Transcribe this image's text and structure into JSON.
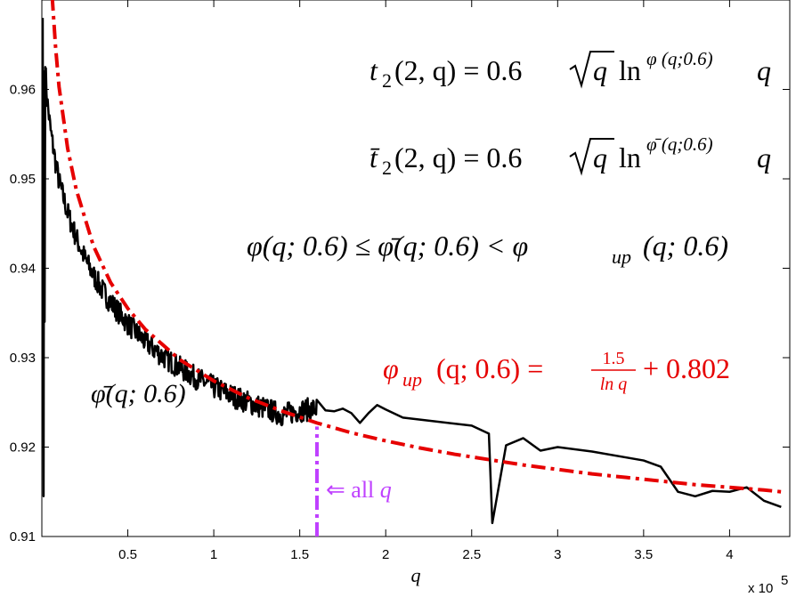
{
  "chart_data": {
    "type": "line",
    "title": "",
    "xlabel": "q",
    "ylabel": "",
    "x_exponent_label": "x 10",
    "x_exponent_power": "5",
    "xlim": [
      0,
      4.35
    ],
    "ylim": [
      0.91,
      0.97
    ],
    "grid": false,
    "x_ticks": [
      0.5,
      1,
      1.5,
      2,
      2.5,
      3,
      3.5,
      4
    ],
    "x_tick_labels": [
      "0.5",
      "1",
      "1.5",
      "2",
      "2.5",
      "3",
      "3.5",
      "4"
    ],
    "y_ticks": [
      0.91,
      0.92,
      0.93,
      0.94,
      0.95,
      0.96
    ],
    "y_tick_labels": [
      "0.91",
      "0.92",
      "0.93",
      "0.94",
      "0.95",
      "0.96"
    ],
    "colors": {
      "phi_bar": "#000000",
      "phi_up": "#e60000",
      "marker": "#bf40ff"
    },
    "series": [
      {
        "name": "φ̄(q; 0.6)",
        "color": "#000000",
        "x": [
          0.005,
          0.012,
          0.02,
          0.03,
          0.05,
          0.08,
          0.1,
          0.15,
          0.2,
          0.25,
          0.3,
          0.35,
          0.4,
          0.5,
          0.6,
          0.7,
          0.8,
          0.9,
          1.0,
          1.1,
          1.2,
          1.3,
          1.4,
          1.5,
          1.6,
          1.65,
          1.7,
          1.75,
          1.8,
          1.85,
          1.9,
          1.95,
          2.0,
          2.1,
          2.5,
          2.6,
          2.62,
          2.7,
          2.8,
          2.9,
          3.0,
          3.2,
          3.5,
          3.6,
          3.7,
          3.8,
          3.9,
          4.0,
          4.1,
          4.2,
          4.3
        ],
        "values": [
          0.968,
          0.966,
          0.9625,
          0.959,
          0.9555,
          0.9518,
          0.9497,
          0.9462,
          0.9434,
          0.9411,
          0.9392,
          0.9376,
          0.9362,
          0.9338,
          0.9318,
          0.9302,
          0.9289,
          0.9277,
          0.9267,
          0.9258,
          0.925,
          0.9243,
          0.9236,
          0.9241,
          0.9243,
          0.9241,
          0.924,
          0.9243,
          0.9238,
          0.9227,
          0.9238,
          0.9247,
          0.9242,
          0.9233,
          0.9224,
          0.9215,
          0.9115,
          0.9202,
          0.921,
          0.9196,
          0.92,
          0.9195,
          0.9185,
          0.9178,
          0.915,
          0.9145,
          0.9151,
          0.915,
          0.9155,
          0.914,
          0.9133
        ]
      },
      {
        "name": "φ_up(q; 0.6)",
        "color": "#e60000",
        "formula": "1.5/ln q + 0.802",
        "x": [
          0.06,
          0.08,
          0.1,
          0.15,
          0.2,
          0.3,
          0.4,
          0.5,
          0.6,
          0.8,
          1.0,
          1.2,
          1.4,
          1.6,
          1.8,
          2.0,
          2.2,
          2.4,
          2.6,
          2.8,
          3.0,
          3.2,
          3.4,
          3.6,
          3.8,
          4.0,
          4.2,
          4.3
        ],
        "values": [
          0.9704,
          0.9647,
          0.9603,
          0.9534,
          0.9488,
          0.9425,
          0.9384,
          0.9355,
          0.9332,
          0.9298,
          0.9274,
          0.9255,
          0.924,
          0.9227,
          0.9216,
          0.9207,
          0.9199,
          0.9192,
          0.9186,
          0.918,
          0.9175,
          0.917,
          0.9166,
          0.9162,
          0.9158,
          0.9155,
          0.9152,
          0.915
        ]
      }
    ],
    "marker_line": {
      "x": 1.6,
      "y_from": 0.91,
      "y_to": 0.9223
    },
    "annotations": {
      "eq1": {
        "lhs": "t",
        "lhs_sub": "2",
        "args": "(2, q) = 0.6",
        "root": "q",
        "ln": "ln",
        "exp": "φ (q;0.6)",
        "tail": "q"
      },
      "eq2": {
        "lhs": "t̄",
        "lhs_sub": "2",
        "args": "(2, q) = 0.6",
        "root": "q",
        "ln": "ln",
        "exp": "φ̄ (q;0.6)",
        "tail": "q"
      },
      "eq3": "φ(q; 0.6) ≤ φ̄(q; 0.6) < φ",
      "eq3_sub": "up",
      "eq3_tail": "(q; 0.6)",
      "red_lhs": "φ",
      "red_sub": "up",
      "red_mid": "(q; 0.6) =",
      "red_num": "1.5",
      "red_den": "ln q",
      "red_tail": "+ 0.802",
      "phi_bar_label": "φ̄(q; 0.6)",
      "marker_label_arrow": "⇐ all",
      "marker_label_var": "q"
    }
  }
}
